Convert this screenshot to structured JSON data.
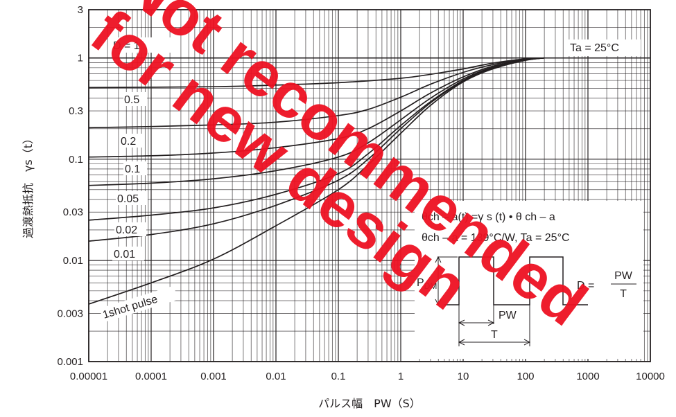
{
  "chart_data": {
    "type": "line",
    "title": "",
    "xlabel": "パルス幅　PW（S）",
    "ylabel": "過渡熱抵抗　γs（t）",
    "x_scale": "log",
    "y_scale": "log",
    "xlim": [
      1e-05,
      10000
    ],
    "ylim": [
      0.001,
      3
    ],
    "grid": true,
    "x_ticks": [
      "0.00001",
      "0.0001",
      "0.001",
      "0.01",
      "0.1",
      "1",
      "10",
      "100",
      "1000",
      "10000"
    ],
    "y_ticks": [
      {
        "value": 3,
        "label": "3"
      },
      {
        "value": 1,
        "label": "1"
      },
      {
        "value": 0.3,
        "label": "0.3"
      },
      {
        "value": 0.1,
        "label": "0.1"
      },
      {
        "value": 0.03,
        "label": "0.03"
      },
      {
        "value": 0.01,
        "label": "0.01"
      },
      {
        "value": 0.003,
        "label": "0.003"
      },
      {
        "value": 0.001,
        "label": "0.001"
      }
    ],
    "series": [
      {
        "name": "D = 1",
        "x": [
          1e-05,
          10000
        ],
        "y": [
          1,
          1
        ]
      },
      {
        "name": "0.5",
        "x": [
          1e-05,
          0.001,
          0.01,
          0.1,
          1,
          3,
          10,
          30,
          100,
          200
        ],
        "y": [
          0.51,
          0.52,
          0.54,
          0.57,
          0.63,
          0.69,
          0.78,
          0.89,
          0.98,
          1
        ]
      },
      {
        "name": "0.2",
        "x": [
          1e-05,
          0.0001,
          0.001,
          0.01,
          0.1,
          0.3,
          1,
          3,
          10,
          30,
          100,
          200
        ],
        "y": [
          0.205,
          0.21,
          0.218,
          0.232,
          0.27,
          0.31,
          0.41,
          0.55,
          0.72,
          0.86,
          0.97,
          1
        ]
      },
      {
        "name": "0.1",
        "x": [
          1e-05,
          0.0001,
          0.001,
          0.01,
          0.1,
          0.3,
          1,
          3,
          10,
          30,
          100,
          200
        ],
        "y": [
          0.105,
          0.108,
          0.115,
          0.13,
          0.16,
          0.2,
          0.3,
          0.45,
          0.65,
          0.83,
          0.96,
          1
        ]
      },
      {
        "name": "0.05",
        "x": [
          1e-05,
          0.0001,
          0.001,
          0.01,
          0.1,
          0.3,
          1,
          3,
          10,
          30,
          100,
          200
        ],
        "y": [
          0.055,
          0.058,
          0.064,
          0.077,
          0.105,
          0.145,
          0.245,
          0.4,
          0.62,
          0.81,
          0.96,
          1
        ]
      },
      {
        "name": "0.02",
        "x": [
          1e-05,
          0.0001,
          0.001,
          0.01,
          0.1,
          0.3,
          1,
          3,
          10,
          30,
          100,
          200
        ],
        "y": [
          0.025,
          0.028,
          0.033,
          0.045,
          0.072,
          0.113,
          0.215,
          0.37,
          0.6,
          0.8,
          0.95,
          1
        ]
      },
      {
        "name": "0.01",
        "x": [
          1e-05,
          0.0001,
          0.001,
          0.01,
          0.1,
          0.3,
          1,
          3,
          10,
          30,
          100,
          200
        ],
        "y": [
          0.0155,
          0.018,
          0.023,
          0.035,
          0.062,
          0.1,
          0.2,
          0.36,
          0.59,
          0.79,
          0.95,
          1
        ]
      },
      {
        "name": "1shot pulse",
        "x": [
          1e-05,
          0.0001,
          0.001,
          0.01,
          0.1,
          0.3,
          1,
          3,
          10,
          30,
          100,
          200
        ],
        "y": [
          0.0037,
          0.006,
          0.0103,
          0.022,
          0.05,
          0.088,
          0.18,
          0.34,
          0.58,
          0.78,
          0.95,
          1
        ]
      }
    ],
    "curve_labels": [
      "D = 1",
      "0.5",
      "0.2",
      "0.1",
      "0.05",
      "0.02",
      "0.01",
      "1shot pulse"
    ],
    "annotations": {
      "ta": "Ta = 25°C",
      "formula1": "θch – a(t) =γ s (t) • θ ch – a",
      "formula2": "θch – a = 139°C/W, Ta = 25°C",
      "pdm": "P",
      "pdm_sub": "DM",
      "d_eq": "D =",
      "d_num": "PW",
      "d_den": "T",
      "pw": "PW",
      "t": "T"
    },
    "watermark": [
      "Not recommended",
      "for new design"
    ]
  }
}
